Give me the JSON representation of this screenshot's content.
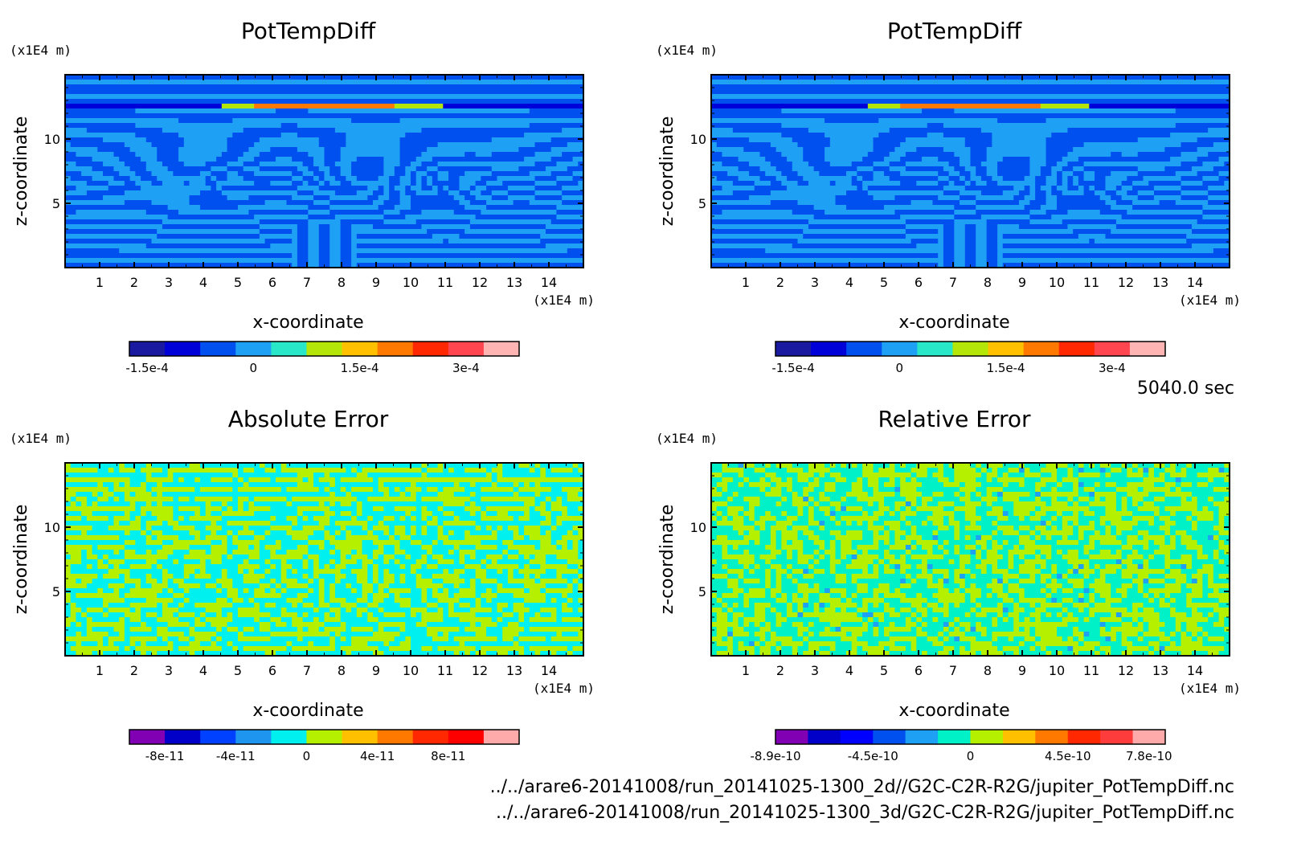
{
  "time_label": "5040.0 sec",
  "footer": {
    "path_2d": "../../arare6-20141008/run_20141025-1300_2d//G2C-C2R-R2G/jupiter_PotTempDiff.nc",
    "path_3d": "../../arare6-20141008/run_20141025-1300_3d/G2C-C2R-R2G/jupiter_PotTempDiff.nc"
  },
  "chart_data": [
    {
      "type": "heatmap",
      "title": "PotTempDiff",
      "xlabel": "x-coordinate",
      "ylabel": "z-coordinate",
      "x_unit": "(x1E4 m)",
      "y_unit": "(x1E4 m)",
      "xlim": [
        0,
        15
      ],
      "ylim": [
        0,
        15
      ],
      "xticks": [
        1,
        2,
        3,
        4,
        5,
        6,
        7,
        8,
        9,
        10,
        11,
        12,
        13,
        14
      ],
      "yticks": [
        5,
        10
      ],
      "pattern": "potemp",
      "colorbar": {
        "colors": [
          "#1a1aa0",
          "#0000d8",
          "#0050f0",
          "#1ea0f5",
          "#28e6c8",
          "#b4e60a",
          "#ffc000",
          "#ff7800",
          "#ff2800",
          "#ff4650",
          "#ffb4b4"
        ],
        "tick_labels": [
          {
            "pos": 0.5,
            "text": "-1.5e-4"
          },
          {
            "pos": 3.5,
            "text": "0"
          },
          {
            "pos": 6.5,
            "text": "1.5e-4"
          },
          {
            "pos": 9.5,
            "text": "3e-4"
          }
        ]
      }
    },
    {
      "type": "heatmap",
      "title": "PotTempDiff",
      "xlabel": "x-coordinate",
      "ylabel": "z-coordinate",
      "x_unit": "(x1E4 m)",
      "y_unit": "(x1E4 m)",
      "xlim": [
        0,
        15
      ],
      "ylim": [
        0,
        15
      ],
      "xticks": [
        1,
        2,
        3,
        4,
        5,
        6,
        7,
        8,
        9,
        10,
        11,
        12,
        13,
        14
      ],
      "yticks": [
        5,
        10
      ],
      "pattern": "potemp",
      "colorbar": {
        "colors": [
          "#1a1aa0",
          "#0000d8",
          "#0050f0",
          "#1ea0f5",
          "#28e6c8",
          "#b4e60a",
          "#ffc000",
          "#ff7800",
          "#ff2800",
          "#ff4650",
          "#ffb4b4"
        ],
        "tick_labels": [
          {
            "pos": 0.5,
            "text": "-1.5e-4"
          },
          {
            "pos": 3.5,
            "text": "0"
          },
          {
            "pos": 6.5,
            "text": "1.5e-4"
          },
          {
            "pos": 9.5,
            "text": "3e-4"
          }
        ]
      }
    },
    {
      "type": "heatmap",
      "title": "Absolute Error",
      "xlabel": "x-coordinate",
      "ylabel": "z-coordinate",
      "x_unit": "(x1E4 m)",
      "y_unit": "(x1E4 m)",
      "xlim": [
        0,
        15
      ],
      "ylim": [
        0,
        15
      ],
      "xticks": [
        1,
        2,
        3,
        4,
        5,
        6,
        7,
        8,
        9,
        10,
        11,
        12,
        13,
        14
      ],
      "yticks": [
        5,
        10
      ],
      "pattern": "abserr",
      "colorbar": {
        "colors": [
          "#8200b4",
          "#0000c8",
          "#0040ff",
          "#1e96f0",
          "#00f0f0",
          "#b4f000",
          "#ffc000",
          "#ff7800",
          "#ff2800",
          "#ff0000",
          "#ffaaaa"
        ],
        "tick_labels": [
          {
            "pos": 1.0,
            "text": "-8e-11"
          },
          {
            "pos": 3.0,
            "text": "-4e-11"
          },
          {
            "pos": 5.0,
            "text": "0"
          },
          {
            "pos": 7.0,
            "text": "4e-11"
          },
          {
            "pos": 9.0,
            "text": "8e-11"
          }
        ]
      }
    },
    {
      "type": "heatmap",
      "title": "Relative Error",
      "xlabel": "x-coordinate",
      "ylabel": "z-coordinate",
      "x_unit": "(x1E4 m)",
      "y_unit": "(x1E4 m)",
      "xlim": [
        0,
        15
      ],
      "ylim": [
        0,
        15
      ],
      "xticks": [
        1,
        2,
        3,
        4,
        5,
        6,
        7,
        8,
        9,
        10,
        11,
        12,
        13,
        14
      ],
      "yticks": [
        5,
        10
      ],
      "pattern": "relerr",
      "colorbar": {
        "colors": [
          "#8200b4",
          "#0000c8",
          "#0000ff",
          "#0050f0",
          "#1ea0f5",
          "#00f0c8",
          "#b4f000",
          "#ffc000",
          "#ff7800",
          "#ff2800",
          "#ff3c3c",
          "#ffaaaa"
        ],
        "tick_labels": [
          {
            "pos": 0.0,
            "text": "-8.9e-10"
          },
          {
            "pos": 3.0,
            "text": "-4.5e-10"
          },
          {
            "pos": 6.0,
            "text": "0"
          },
          {
            "pos": 9.0,
            "text": "4.5e-10"
          },
          {
            "pos": 11.5,
            "text": "7.8e-10"
          }
        ]
      }
    }
  ]
}
